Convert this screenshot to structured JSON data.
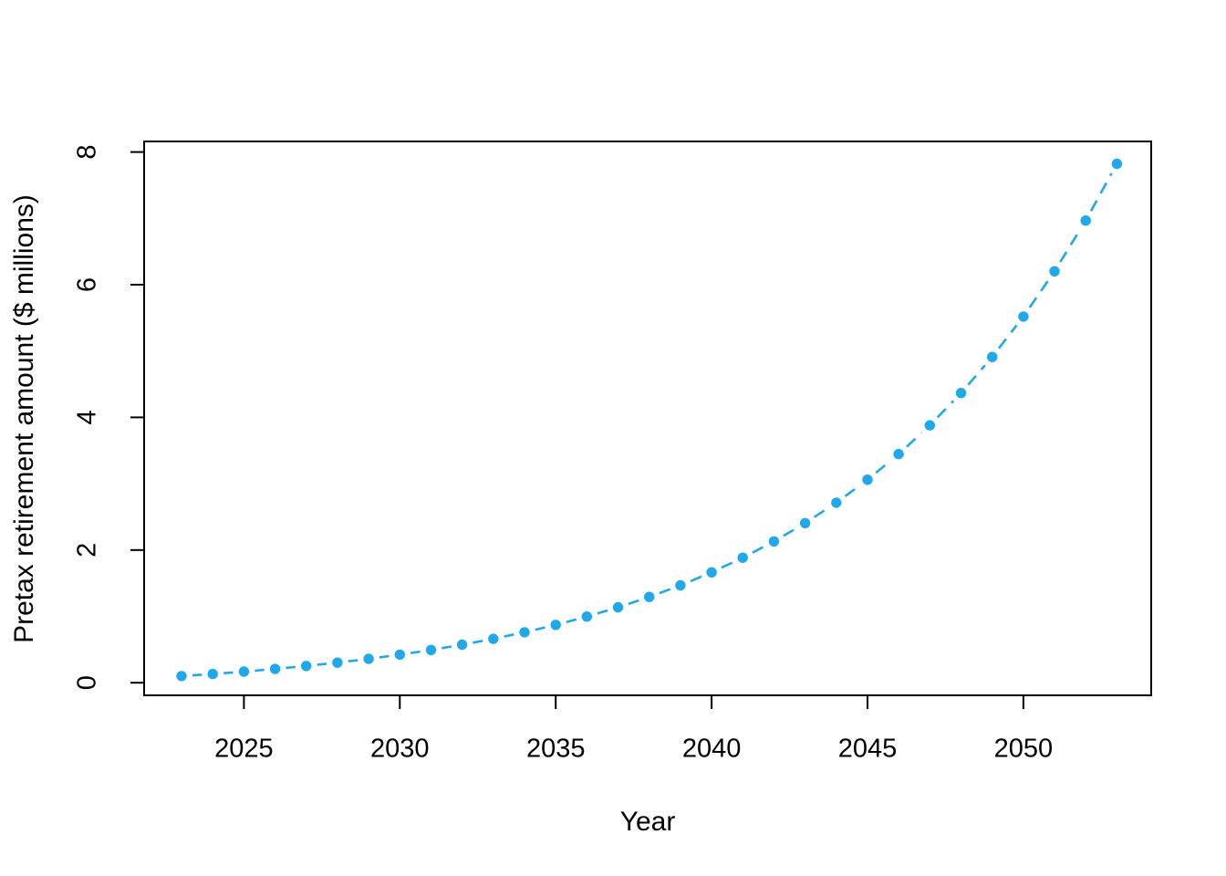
{
  "page": {
    "background_color": "#ffffff",
    "foreground_color": "#000000"
  },
  "chart_data": {
    "type": "scatter",
    "subtype": "points-with-dashed-line",
    "title": "",
    "xlabel": "Year",
    "ylabel": "Pretax retirement amount ($ millions)",
    "marker": "filled-circle",
    "line_style": "dashed",
    "point_color": "#1FA8EA",
    "axis_color": "#000000",
    "grid": false,
    "legend": null,
    "xticks": [
      2025,
      2030,
      2035,
      2040,
      2045,
      2050
    ],
    "yticks": [
      0,
      2,
      4,
      6,
      8
    ],
    "xlim": [
      2021.8,
      2054.1
    ],
    "ylim": [
      -0.19,
      8.16
    ],
    "x": [
      2023,
      2024,
      2025,
      2026,
      2027,
      2028,
      2029,
      2030,
      2031,
      2032,
      2033,
      2034,
      2035,
      2036,
      2037,
      2038,
      2039,
      2040,
      2041,
      2042,
      2043,
      2044,
      2045,
      2046,
      2047,
      2048,
      2049,
      2050,
      2051,
      2052,
      2053
    ],
    "y": [
      0.1,
      0.132,
      0.168,
      0.208,
      0.253,
      0.303,
      0.36,
      0.423,
      0.494,
      0.573,
      0.662,
      0.761,
      0.872,
      0.997,
      1.137,
      1.293,
      1.468,
      1.664,
      1.884,
      2.13,
      2.406,
      2.714,
      3.06,
      3.447,
      3.881,
      4.367,
      4.911,
      5.52,
      6.202,
      6.967,
      7.823
    ]
  }
}
